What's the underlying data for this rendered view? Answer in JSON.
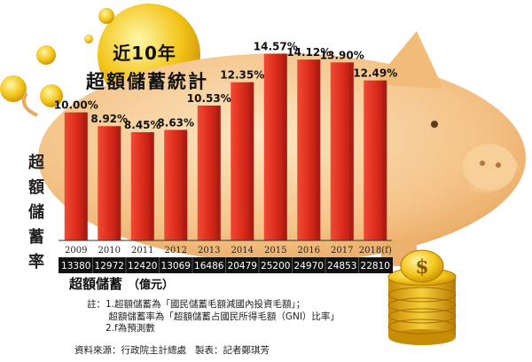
{
  "title": {
    "line1": "近10年",
    "line2": "超額儲蓄統計"
  },
  "chart_data": {
    "type": "bar",
    "categories": [
      "2009",
      "2010",
      "2011",
      "2012",
      "2013",
      "2014",
      "2015",
      "2016",
      "2017",
      "2018(f)"
    ],
    "values": [
      10.0,
      8.92,
      8.45,
      8.63,
      10.53,
      12.35,
      14.57,
      14.12,
      13.9,
      12.49
    ],
    "value_labels": [
      "10.00%",
      "8.92%",
      "8.45%",
      "8.63%",
      "10.53%",
      "12.35%",
      "14.57%",
      "14.12%",
      "13.90%",
      "12.49%"
    ],
    "ylabel": "超額儲蓄率",
    "ylim": [
      0,
      16
    ],
    "grid": false,
    "table_row": {
      "label": "超額儲蓄",
      "unit": "（億元）",
      "values": [
        "13380",
        "12972",
        "12420",
        "13069",
        "16486",
        "20479",
        "25200",
        "24970",
        "24853",
        "22810"
      ]
    },
    "colors": {
      "bar": "#e03323",
      "bar_dark": "#a81c12",
      "table_bg": "#111111",
      "table_text": "#ffffff",
      "pig": "#f6c98a"
    }
  },
  "notes": {
    "lines": [
      "註：1.超額儲蓄為「國民儲蓄毛額減國內投資毛額」；",
      "　　 超額儲蓄率為「超額儲蓄占國民所得毛額（GNI）比率」",
      "　　2.f為預測數"
    ]
  },
  "source": {
    "text": "資料來源：行政院主計總處",
    "credit": "製表：記者鄭琪芳"
  }
}
